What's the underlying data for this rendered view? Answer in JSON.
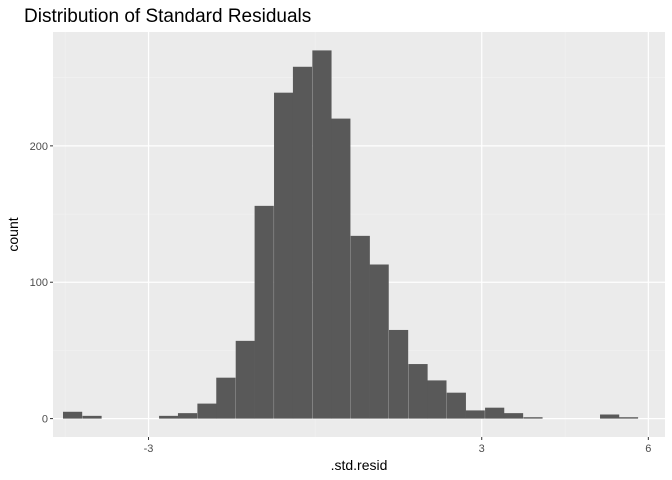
{
  "chart_data": {
    "type": "bar",
    "subtype": "histogram",
    "title": "Distribution of Standard Residuals",
    "xlabel": ".std.resid",
    "ylabel": "count",
    "xlim": [
      -4.72,
      6.3
    ],
    "ylim": [
      -13.5,
      283.5
    ],
    "x_ticks": [
      -3,
      3,
      6
    ],
    "x_tick_labels": [
      "-3",
      "3",
      "6"
    ],
    "y_ticks": [
      0,
      100,
      200
    ],
    "y_tick_labels": [
      "0",
      "100",
      "200"
    ],
    "grid": true,
    "legend": "none",
    "bin_width": 0.3456,
    "bins": [
      {
        "start": -4.54,
        "count": 5
      },
      {
        "start": -4.19,
        "count": 2
      },
      {
        "start": -3.85,
        "count": 0
      },
      {
        "start": -3.5,
        "count": 0
      },
      {
        "start": -3.16,
        "count": 0
      },
      {
        "start": -2.81,
        "count": 2
      },
      {
        "start": -2.47,
        "count": 4
      },
      {
        "start": -2.12,
        "count": 11
      },
      {
        "start": -1.78,
        "count": 30
      },
      {
        "start": -1.43,
        "count": 57
      },
      {
        "start": -1.09,
        "count": 156
      },
      {
        "start": -0.74,
        "count": 239
      },
      {
        "start": -0.4,
        "count": 258
      },
      {
        "start": -0.05,
        "count": 270
      },
      {
        "start": 0.29,
        "count": 220
      },
      {
        "start": 0.64,
        "count": 134
      },
      {
        "start": 0.98,
        "count": 113
      },
      {
        "start": 1.33,
        "count": 65
      },
      {
        "start": 1.68,
        "count": 40
      },
      {
        "start": 2.02,
        "count": 28
      },
      {
        "start": 2.37,
        "count": 19
      },
      {
        "start": 2.71,
        "count": 6
      },
      {
        "start": 3.06,
        "count": 8
      },
      {
        "start": 3.4,
        "count": 4
      },
      {
        "start": 3.75,
        "count": 1
      },
      {
        "start": 4.09,
        "count": 0
      },
      {
        "start": 4.44,
        "count": 0
      },
      {
        "start": 4.78,
        "count": 0
      },
      {
        "start": 5.13,
        "count": 3
      },
      {
        "start": 5.47,
        "count": 1
      }
    ],
    "colors": {
      "bar": "#595959",
      "panel": "#ebebeb",
      "grid_major": "#ffffff",
      "grid_minor": "#f2f2f2"
    }
  }
}
